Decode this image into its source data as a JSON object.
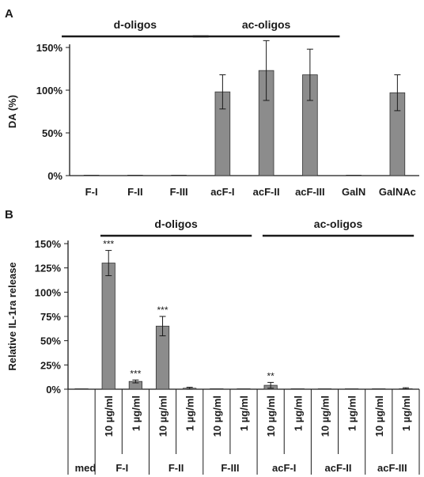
{
  "chart_data": [
    {
      "panel": "A",
      "type": "bar",
      "title": "",
      "xlabel": "",
      "ylabel": "DA (%)",
      "ylim": [
        0,
        150
      ],
      "yticks": [
        "0%",
        "50%",
        "100%",
        "150%"
      ],
      "categories": [
        "F-I",
        "F-II",
        "F-III",
        "acF-I",
        "acF-II",
        "acF-III",
        "GalN",
        "GalNAc"
      ],
      "values": [
        0.5,
        0,
        0,
        98,
        123,
        118,
        0.5,
        97
      ],
      "errors": [
        0,
        0,
        0,
        20,
        35,
        30,
        0,
        21
      ],
      "group_labels": [
        {
          "label": "d-oligos",
          "from": 0,
          "to": 2
        },
        {
          "label": "ac-oligos",
          "from": 3,
          "to": 5
        }
      ],
      "bar_color": "#8c8c8c",
      "grid": false
    },
    {
      "panel": "B",
      "type": "bar",
      "title": "",
      "xlabel": "",
      "ylabel": "Relative IL-1ra release",
      "ylim": [
        0,
        150
      ],
      "yticks": [
        "0%",
        "25%",
        "50%",
        "75%",
        "100%",
        "125%",
        "150%"
      ],
      "categories": [
        "",
        "10 µg/ml",
        "1 µg/ml",
        "10 µg/ml",
        "1 µg/ml",
        "10 µg/ml",
        "1 µg/ml",
        "10 µg/ml",
        "1 µg/ml",
        "10 µg/ml",
        "1 µg/ml",
        "10 µg/ml",
        "1 µg/ml"
      ],
      "groups": [
        "med",
        "F-I",
        "F-II",
        "F-III",
        "acF-I",
        "acF-II",
        "acF-III"
      ],
      "values": [
        0,
        130,
        8,
        65,
        1,
        0.5,
        0,
        4,
        0,
        0,
        0,
        0,
        0.5
      ],
      "errors": [
        0,
        13,
        1.5,
        10,
        1,
        0,
        0,
        3,
        0,
        0,
        0,
        0,
        1
      ],
      "significance": [
        "",
        "***",
        "***",
        "***",
        "",
        "",
        "",
        "**",
        "",
        "",
        "",
        "",
        ""
      ],
      "group_labels": [
        {
          "label": "d-oligos",
          "from": 1,
          "to": 6
        },
        {
          "label": "ac-oligos",
          "from": 7,
          "to": 12
        }
      ],
      "bar_color": "#8c8c8c",
      "grid": false
    }
  ]
}
